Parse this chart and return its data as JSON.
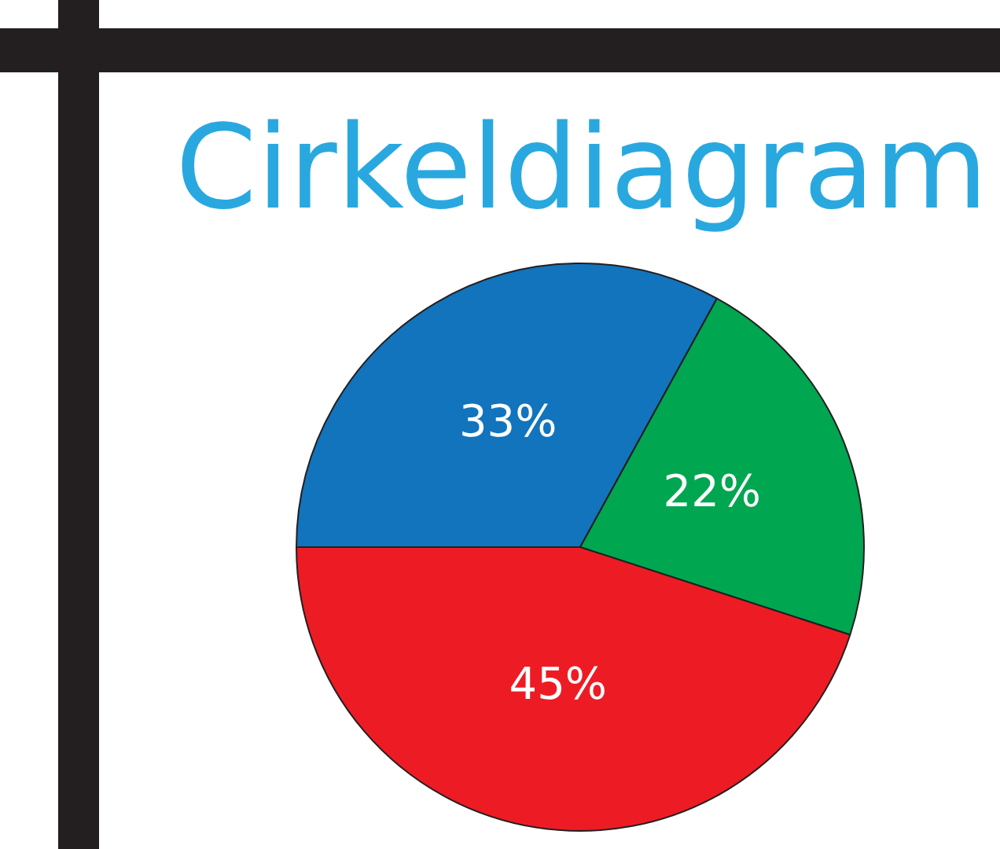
{
  "chart_data": {
    "type": "pie",
    "title": "Cirkeldiagram",
    "categories": [
      null,
      null,
      null
    ],
    "values": [
      33,
      22,
      45
    ],
    "colors": [
      "#1174bc",
      "#00a650",
      "#ed1c24"
    ],
    "value_labels": [
      "33%",
      "22%",
      "45%"
    ],
    "legend": false
  }
}
